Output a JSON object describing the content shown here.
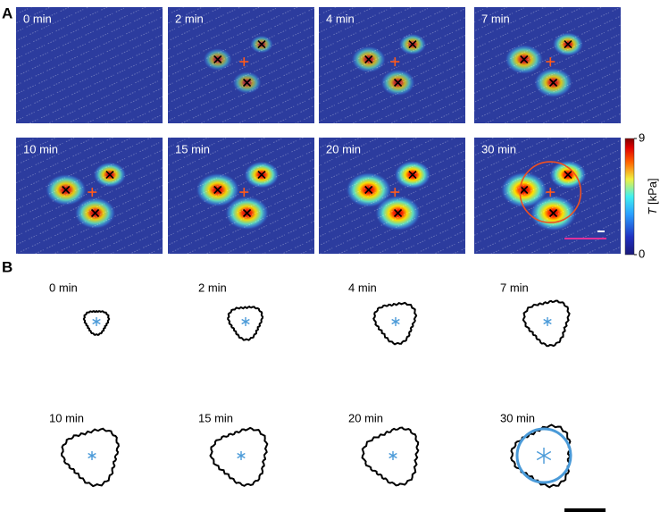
{
  "panel_a": {
    "label": "A",
    "frames": [
      "0 min",
      "2 min",
      "4 min",
      "7 min",
      "10 min",
      "15 min",
      "20 min",
      "30 min"
    ],
    "colorbar": {
      "lim": [
        0,
        9
      ],
      "ticks": [
        0,
        9
      ],
      "symbol": "T",
      "unit": "[kPa]"
    }
  },
  "panel_b": {
    "label": "B",
    "frames": [
      "0 min",
      "2 min",
      "4 min",
      "7 min",
      "10 min",
      "15 min",
      "20 min",
      "30 min"
    ]
  }
}
